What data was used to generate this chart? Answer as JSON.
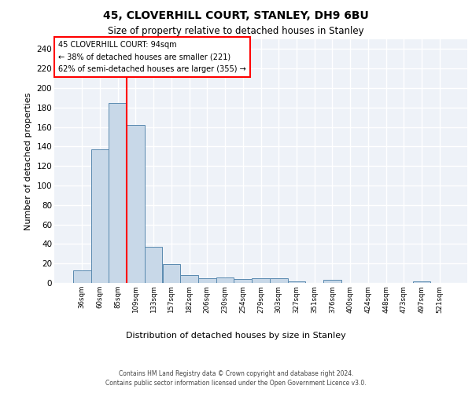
{
  "title1": "45, CLOVERHILL COURT, STANLEY, DH9 6BU",
  "title2": "Size of property relative to detached houses in Stanley",
  "xlabel": "Distribution of detached houses by size in Stanley",
  "ylabel": "Number of detached properties",
  "bar_categories": [
    "36sqm",
    "60sqm",
    "85sqm",
    "109sqm",
    "133sqm",
    "157sqm",
    "182sqm",
    "206sqm",
    "230sqm",
    "254sqm",
    "279sqm",
    "303sqm",
    "327sqm",
    "351sqm",
    "376sqm",
    "400sqm",
    "424sqm",
    "448sqm",
    "473sqm",
    "497sqm",
    "521sqm"
  ],
  "bar_values": [
    13,
    137,
    185,
    162,
    37,
    19,
    8,
    5,
    6,
    4,
    5,
    5,
    2,
    0,
    3,
    0,
    0,
    0,
    0,
    2,
    0
  ],
  "bar_color": "#c8d8e8",
  "bar_edgecolor": "#5a8ab0",
  "red_line_x": 2.5,
  "annotation_line1": "45 CLOVERHILL COURT: 94sqm",
  "annotation_line2": "← 38% of detached houses are smaller (221)",
  "annotation_line3": "62% of semi-detached houses are larger (355) →",
  "ylim": [
    0,
    250
  ],
  "yticks": [
    0,
    20,
    40,
    60,
    80,
    100,
    120,
    140,
    160,
    180,
    200,
    220,
    240
  ],
  "background_color": "#eef2f8",
  "grid_color": "white",
  "footer_line1": "Contains HM Land Registry data © Crown copyright and database right 2024.",
  "footer_line2": "Contains public sector information licensed under the Open Government Licence v3.0."
}
